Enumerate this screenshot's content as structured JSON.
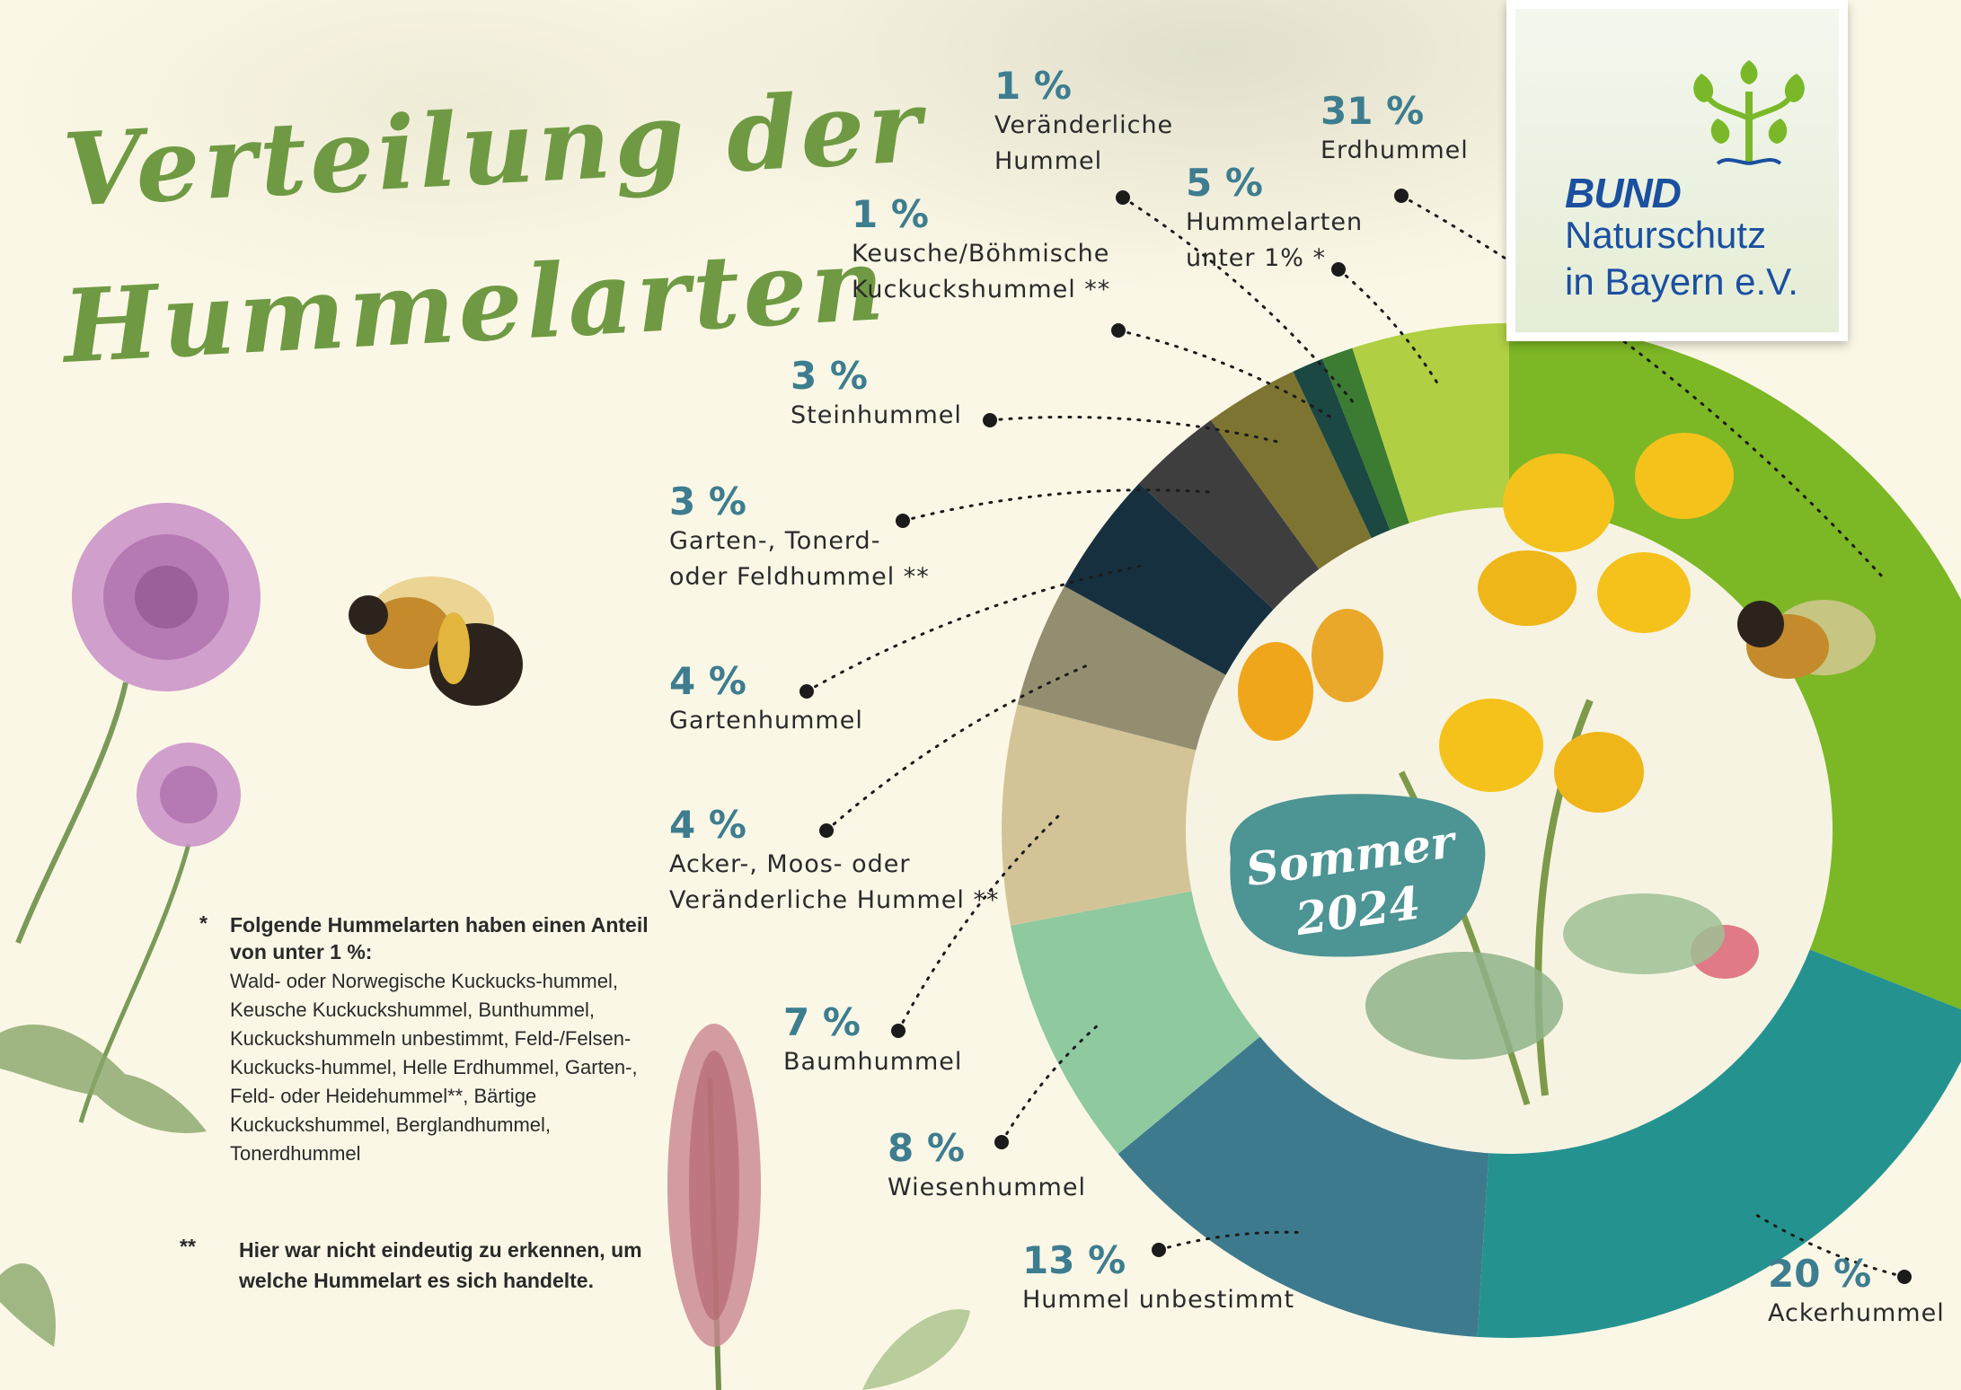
{
  "title_line1": "Verteilung der",
  "title_line2": "Hummelarten",
  "logo": {
    "line1": "BUND",
    "line2": "Naturschutz",
    "line3": "in Bayern e.V."
  },
  "badge": {
    "line1": "Sommer",
    "line2": "2024"
  },
  "chart_data": {
    "type": "pie",
    "title": "Verteilung der Hummelarten",
    "variant": "donut",
    "start_angle_deg": 0,
    "direction": "clockwise",
    "slices": [
      {
        "label": "Erdhummel",
        "value": 31,
        "value_label": "31 %",
        "color": "#7cb726"
      },
      {
        "label": "Ackerhummel",
        "value": 20,
        "value_label": "20 %",
        "color": "#249390"
      },
      {
        "label": "Hummel unbestimmt",
        "value": 13,
        "value_label": "13 %",
        "color": "#3e7a8e"
      },
      {
        "label": "Wiesenhummel",
        "value": 8,
        "value_label": "8 %",
        "color": "#8ec9a0"
      },
      {
        "label": "Baumhummel",
        "value": 7,
        "value_label": "7 %",
        "color": "#d3c498"
      },
      {
        "label": "Acker-, Moos- oder Veränderliche Hummel **",
        "value": 4,
        "value_label": "4 %",
        "color": "#948e70"
      },
      {
        "label": "Gartenhummel",
        "value": 4,
        "value_label": "4 %",
        "color": "#163040"
      },
      {
        "label": "Garten-, Tonerd- oder Feldhummel **",
        "value": 3,
        "value_label": "3 %",
        "color": "#3e3e3e"
      },
      {
        "label": "Steinhummel",
        "value": 3,
        "value_label": "3 %",
        "color": "#7e7432"
      },
      {
        "label": "Keusche/Böhmische Kuckuckshummel **",
        "value": 1,
        "value_label": "1 %",
        "color": "#1b4842"
      },
      {
        "label": "Veränderliche Hummel",
        "value": 1,
        "value_label": "1 %",
        "color": "#3b7b32"
      },
      {
        "label": "Hummelarten unter 1% *",
        "value": 5,
        "value_label": "5 %",
        "color": "#b0cf43"
      }
    ]
  },
  "labels": [
    {
      "pct": "31 %",
      "name_lines": [
        "Erdhummel"
      ]
    },
    {
      "pct": "20 %",
      "name_lines": [
        "Ackerhummel"
      ]
    },
    {
      "pct": "13 %",
      "name_lines": [
        "Hummel unbestimmt"
      ]
    },
    {
      "pct": "8 %",
      "name_lines": [
        "Wiesenhummel"
      ]
    },
    {
      "pct": "7 %",
      "name_lines": [
        "Baumhummel"
      ]
    },
    {
      "pct": "4 %",
      "name_lines": [
        "Acker-, Moos- oder",
        "Veränderliche Hummel **"
      ]
    },
    {
      "pct": "4 %",
      "name_lines": [
        "Gartenhummel"
      ]
    },
    {
      "pct": "3 %",
      "name_lines": [
        "Garten-, Tonerd-",
        "oder Feldhummel **"
      ]
    },
    {
      "pct": "3 %",
      "name_lines": [
        "Steinhummel"
      ]
    },
    {
      "pct": "1 %",
      "name_lines": [
        "Keusche/Böhmische",
        "Kuckuckshummel **"
      ]
    },
    {
      "pct": "1 %",
      "name_lines": [
        "Veränderliche",
        "Hummel"
      ]
    },
    {
      "pct": "5 %",
      "name_lines": [
        "Hummelarten",
        "unter 1% *"
      ]
    }
  ],
  "notes": {
    "star1": "*",
    "heading": "Folgende Hummelarten haben einen Anteil von unter 1 %:",
    "body": "Wald- oder Norwegische Kuckucks-hummel, Keusche Kuckuckshummel, Bunthummel, Kuckuckshummeln unbestimmt, Feld-/Felsen-Kuckucks-hummel, Helle Erdhummel, Garten-, Feld- oder Heidehummel**, Bärtige Kuckuckshummel, Berglandhummel, Tonerdhummel",
    "star2": "**",
    "note2": "Hier war nicht eindeutig zu erkennen, um welche Hummelart es sich handelte."
  }
}
